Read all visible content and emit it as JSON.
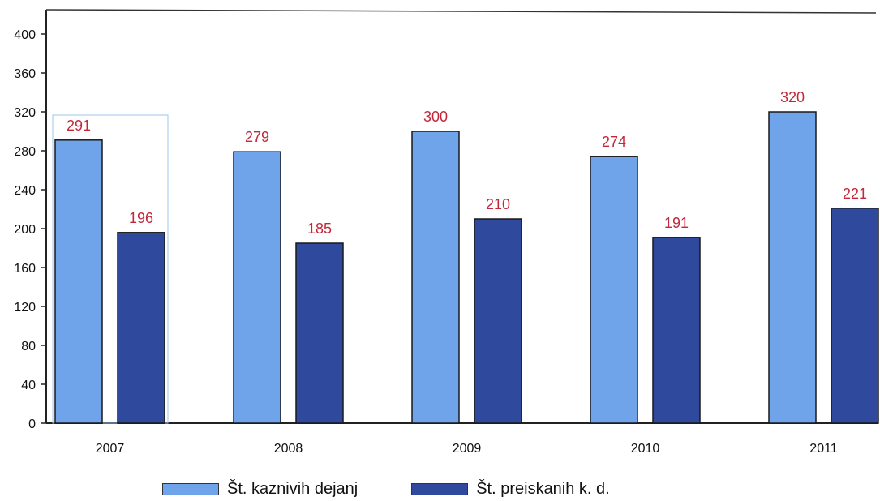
{
  "colors": {
    "series1": "#6fa3ea",
    "series2": "#2f4a9c",
    "label": "#c2283a",
    "axis": "#222222"
  },
  "chart_data": {
    "type": "bar",
    "categories": [
      "2007",
      "2008",
      "2009",
      "2010",
      "2011"
    ],
    "series": [
      {
        "name": "Št. kaznivih dejanj",
        "values": [
          291,
          279,
          300,
          274,
          320
        ]
      },
      {
        "name": "Št. preiskanih k. d.",
        "values": [
          196,
          185,
          210,
          191,
          221
        ]
      }
    ],
    "data_labels": [
      [
        "291",
        "279",
        "300",
        "274",
        "320"
      ],
      [
        "196",
        "185",
        "210",
        "191",
        "221"
      ]
    ],
    "yticks": [
      0,
      40,
      80,
      120,
      160,
      200,
      240,
      280,
      320,
      360,
      400
    ],
    "ylim": [
      0,
      410
    ],
    "grid": false,
    "legend": "bottom"
  }
}
